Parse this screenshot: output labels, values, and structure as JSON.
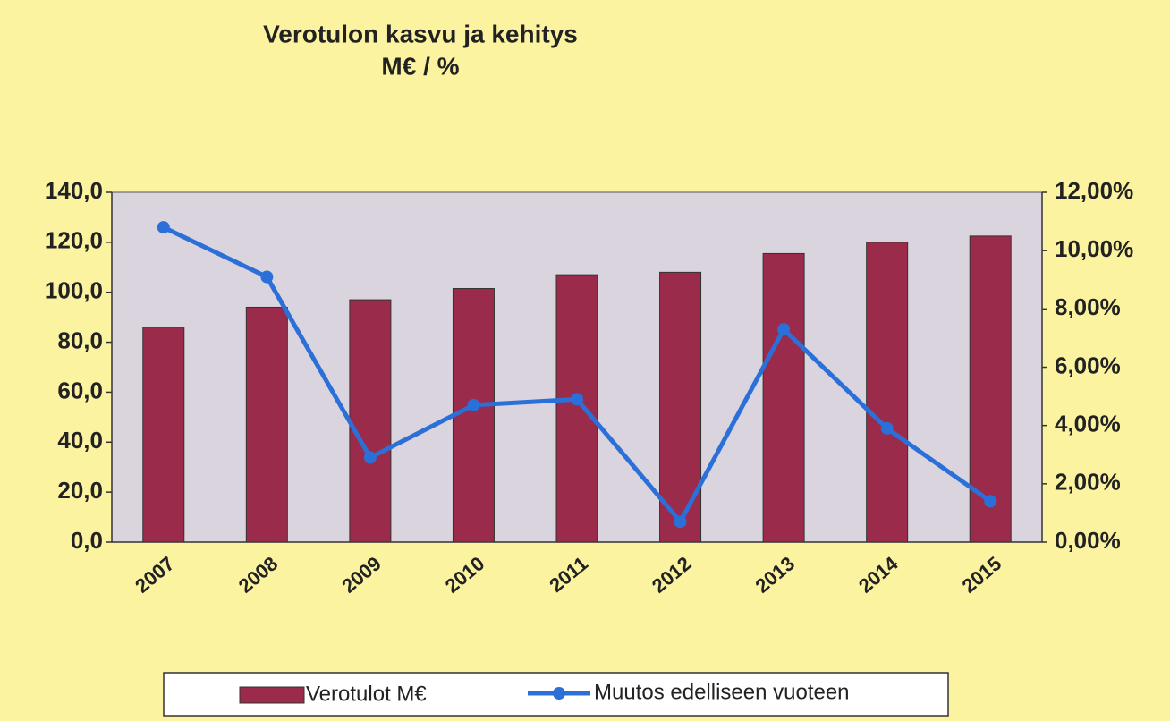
{
  "chart_data": {
    "type": "bar",
    "title": "Verotulon kasvu ja kehitys",
    "subtitle": "M€ / %",
    "categories": [
      "2007",
      "2008",
      "2009",
      "2010",
      "2011",
      "2012",
      "2013",
      "2014",
      "2015"
    ],
    "series": [
      {
        "name": "Verotulot M€",
        "type": "bar",
        "color": "#9b2b4a",
        "values": [
          86,
          94,
          97,
          101.5,
          107,
          108,
          115.5,
          120,
          122.5
        ]
      },
      {
        "name": "Muutos edelliseen vuoteen",
        "type": "line",
        "axis": "y2",
        "color": "#2b6fd8",
        "values": [
          10.8,
          9.1,
          2.9,
          4.7,
          4.9,
          0.7,
          7.3,
          3.9,
          1.4
        ]
      }
    ],
    "ylim": [
      0,
      140
    ],
    "yticks": [
      {
        "value": 0,
        "label": "0,0"
      },
      {
        "value": 20,
        "label": "20,0"
      },
      {
        "value": 40,
        "label": "40,0"
      },
      {
        "value": 60,
        "label": "60,0"
      },
      {
        "value": 80,
        "label": "80,0"
      },
      {
        "value": 100,
        "label": "100,0"
      },
      {
        "value": 120,
        "label": "120,0"
      },
      {
        "value": 140,
        "label": "140,0"
      }
    ],
    "y2lim": [
      0,
      12
    ],
    "y2ticks": [
      {
        "value": 0,
        "label": "0,00%"
      },
      {
        "value": 2,
        "label": "2,00%"
      },
      {
        "value": 4,
        "label": "4,00%"
      },
      {
        "value": 6,
        "label": "6,00%"
      },
      {
        "value": 8,
        "label": "8,00%"
      },
      {
        "value": 10,
        "label": "10,00%"
      },
      {
        "value": 12,
        "label": "12,00%"
      }
    ],
    "grid": false
  }
}
